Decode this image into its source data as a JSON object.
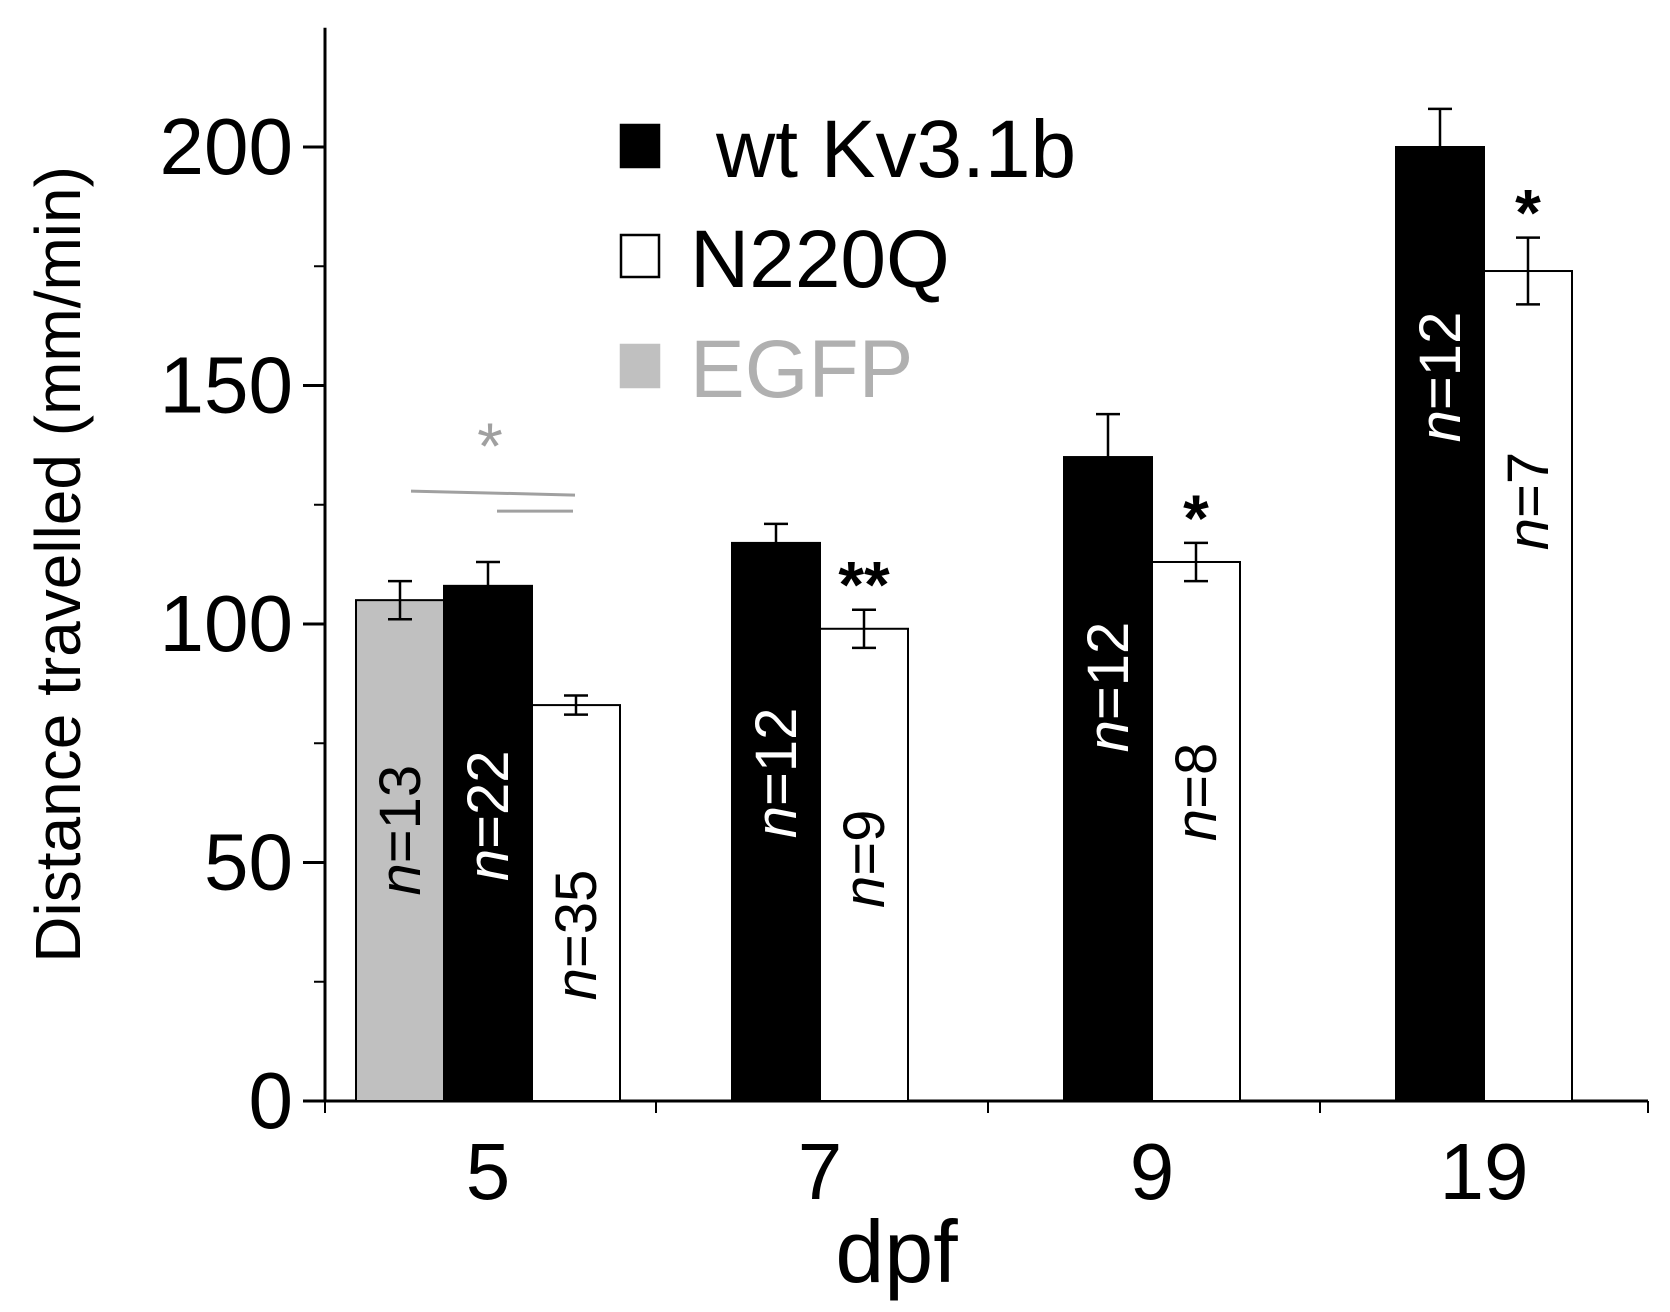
{
  "chart_data": {
    "type": "bar",
    "title": "",
    "xlabel": "dpf",
    "ylabel": "Distance travelled (mm/min)",
    "ylim": [
      0,
      225
    ],
    "yticks": [
      0,
      50,
      100,
      150,
      200
    ],
    "grid": false,
    "legend_position": "top-center",
    "categories": [
      "5",
      "7",
      "9",
      "19"
    ],
    "series": [
      {
        "name": "EGFP",
        "color": "#c0c0c0",
        "legend_text_color": "#b0b0b0",
        "values": [
          105,
          null,
          null,
          null
        ],
        "errors": [
          4,
          null,
          null,
          null
        ],
        "n_labels": [
          "n=13",
          null,
          null,
          null
        ]
      },
      {
        "name": "wt Kv3.1b",
        "color": "#000000",
        "legend_text_color": "#000000",
        "values": [
          108,
          117,
          135,
          200
        ],
        "errors": [
          5,
          4,
          9,
          8
        ],
        "n_labels": [
          "n=22",
          "n=12",
          "n=12",
          "n=12"
        ]
      },
      {
        "name": "N220Q",
        "color": "#ffffff",
        "legend_text_color": "#000000",
        "values": [
          83,
          99,
          113,
          174
        ],
        "errors": [
          2,
          4,
          4,
          7
        ],
        "n_labels": [
          "n=35",
          "n=9",
          "n=8",
          "n=7"
        ]
      }
    ],
    "legend_order": [
      "wt Kv3.1b",
      "N220Q",
      "EGFP"
    ],
    "significance": [
      {
        "category": "5",
        "text": "*",
        "color": "#a0a0a0",
        "comparison": "EGFP vs N220Q"
      },
      {
        "category": "7",
        "text": "**",
        "color": "#000000",
        "comparison": "wt Kv3.1b vs N220Q"
      },
      {
        "category": "9",
        "text": "*",
        "color": "#000000",
        "comparison": "wt Kv3.1b vs N220Q"
      },
      {
        "category": "19",
        "text": "*",
        "color": "#000000",
        "comparison": "wt Kv3.1b vs N220Q"
      }
    ]
  }
}
